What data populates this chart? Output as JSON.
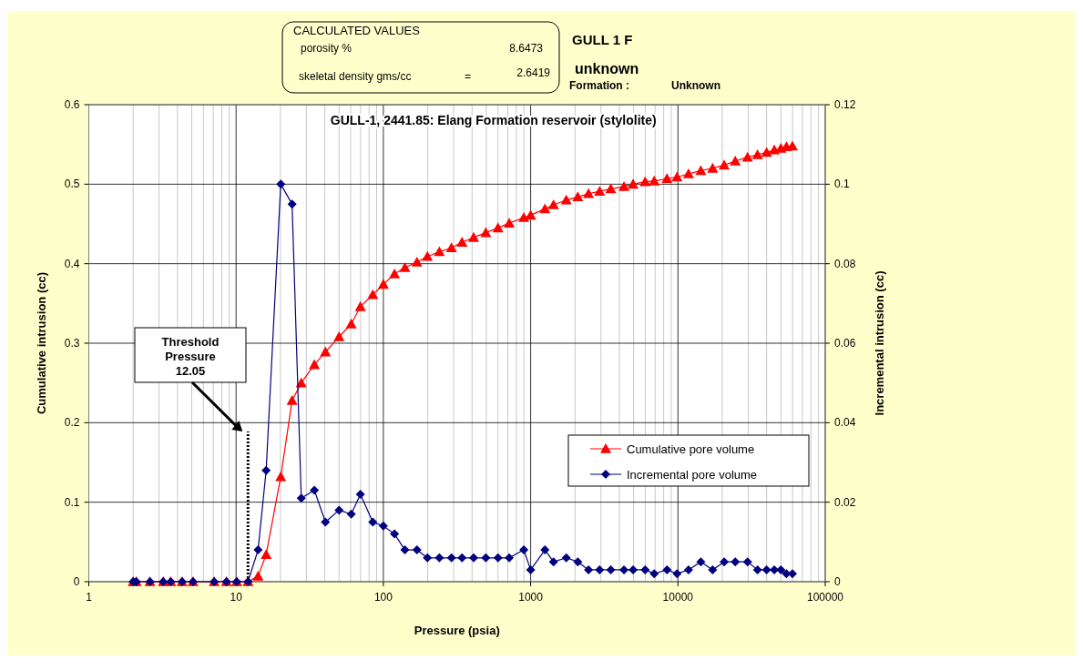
{
  "chart_data": {
    "type": "line",
    "title": "GULL-1, 2441.85: Elang Formation reservoir (stylolite)",
    "xlabel": "Pressure (psia)",
    "ylabel": "Cumulative intrusion (cc)",
    "y2label": "Incremental intrusion (cc)",
    "annotations": [
      "Threshold Pressure 12.05",
      "CALCULATED VALUES",
      "porosity %",
      "8.6473",
      "skeletal density  gms/cc",
      "=",
      "2.6419",
      "GULL 1 F",
      "unknown",
      "Formation :",
      "Unknown"
    ],
    "x": [
      2,
      2.1,
      2.6,
      3.2,
      3.6,
      4.3,
      5.1,
      7.1,
      8.6,
      10.1,
      12.05,
      14.1,
      16,
      20.1,
      24,
      27.7,
      34,
      40.4,
      50,
      60.5,
      69.8,
      84.8,
      100,
      119,
      140,
      169,
      199,
      240,
      290,
      342,
      410,
      496,
      600,
      715,
      898,
      1000,
      1250,
      1430,
      1745,
      2090,
      2470,
      2940,
      3500,
      4300,
      4960,
      5990,
      6900,
      8430,
      9860,
      11800,
      14300,
      17200,
      20600,
      24500,
      29700,
      34700,
      40000,
      45100,
      50000,
      54500,
      59900
    ],
    "series": [
      {
        "name": "Cumulative pore volume",
        "color": "#ff0000",
        "marker": "triangle",
        "values": [
          0,
          0,
          0,
          0,
          0,
          0,
          0,
          0,
          0,
          0,
          0,
          0.007,
          0.034,
          0.132,
          0.228,
          0.25,
          0.273,
          0.289,
          0.308,
          0.324,
          0.346,
          0.361,
          0.374,
          0.387,
          0.395,
          0.402,
          0.409,
          0.415,
          0.42,
          0.427,
          0.433,
          0.439,
          0.445,
          0.451,
          0.458,
          0.461,
          0.469,
          0.474,
          0.48,
          0.484,
          0.488,
          0.491,
          0.494,
          0.497,
          0.5,
          0.503,
          0.504,
          0.507,
          0.509,
          0.513,
          0.517,
          0.52,
          0.524,
          0.529,
          0.534,
          0.537,
          0.54,
          0.543,
          0.545,
          0.547,
          0.548
        ]
      },
      {
        "name": "Incremental pore volume",
        "color": "#000080",
        "marker": "diamond",
        "axis": "y2",
        "values": [
          0,
          0,
          0,
          0,
          0,
          0,
          0,
          0,
          0,
          0,
          0,
          0.008,
          0.028,
          0.1,
          0.095,
          0.021,
          0.023,
          0.015,
          0.018,
          0.017,
          0.022,
          0.015,
          0.014,
          0.012,
          0.008,
          0.008,
          0.006,
          0.006,
          0.006,
          0.006,
          0.006,
          0.006,
          0.006,
          0.006,
          0.008,
          0.003,
          0.008,
          0.005,
          0.006,
          0.005,
          0.003,
          0.003,
          0.003,
          0.003,
          0.003,
          0.003,
          0.002,
          0.003,
          0.002,
          0.003,
          0.005,
          0.003,
          0.005,
          0.005,
          0.005,
          0.003,
          0.003,
          0.003,
          0.003,
          0.002,
          0.002
        ]
      }
    ],
    "log": "x",
    "xlim": [
      1,
      100000
    ],
    "xticks": [
      1,
      10,
      100,
      1000,
      10000,
      100000
    ],
    "ylim": [
      0,
      0.6
    ],
    "yticks": [
      0,
      0.1,
      0.2,
      0.3,
      0.4,
      0.5,
      0.6
    ],
    "y2lim": [
      0,
      0.12
    ],
    "y2ticks": [
      0,
      0.02,
      0.04,
      0.06,
      0.08,
      0.1,
      0.12
    ],
    "ref_lines": [
      {
        "axis": "x",
        "value": 12.05,
        "line_style": "dotted",
        "color": "#000000"
      }
    ],
    "grid": true,
    "legend": "right"
  }
}
